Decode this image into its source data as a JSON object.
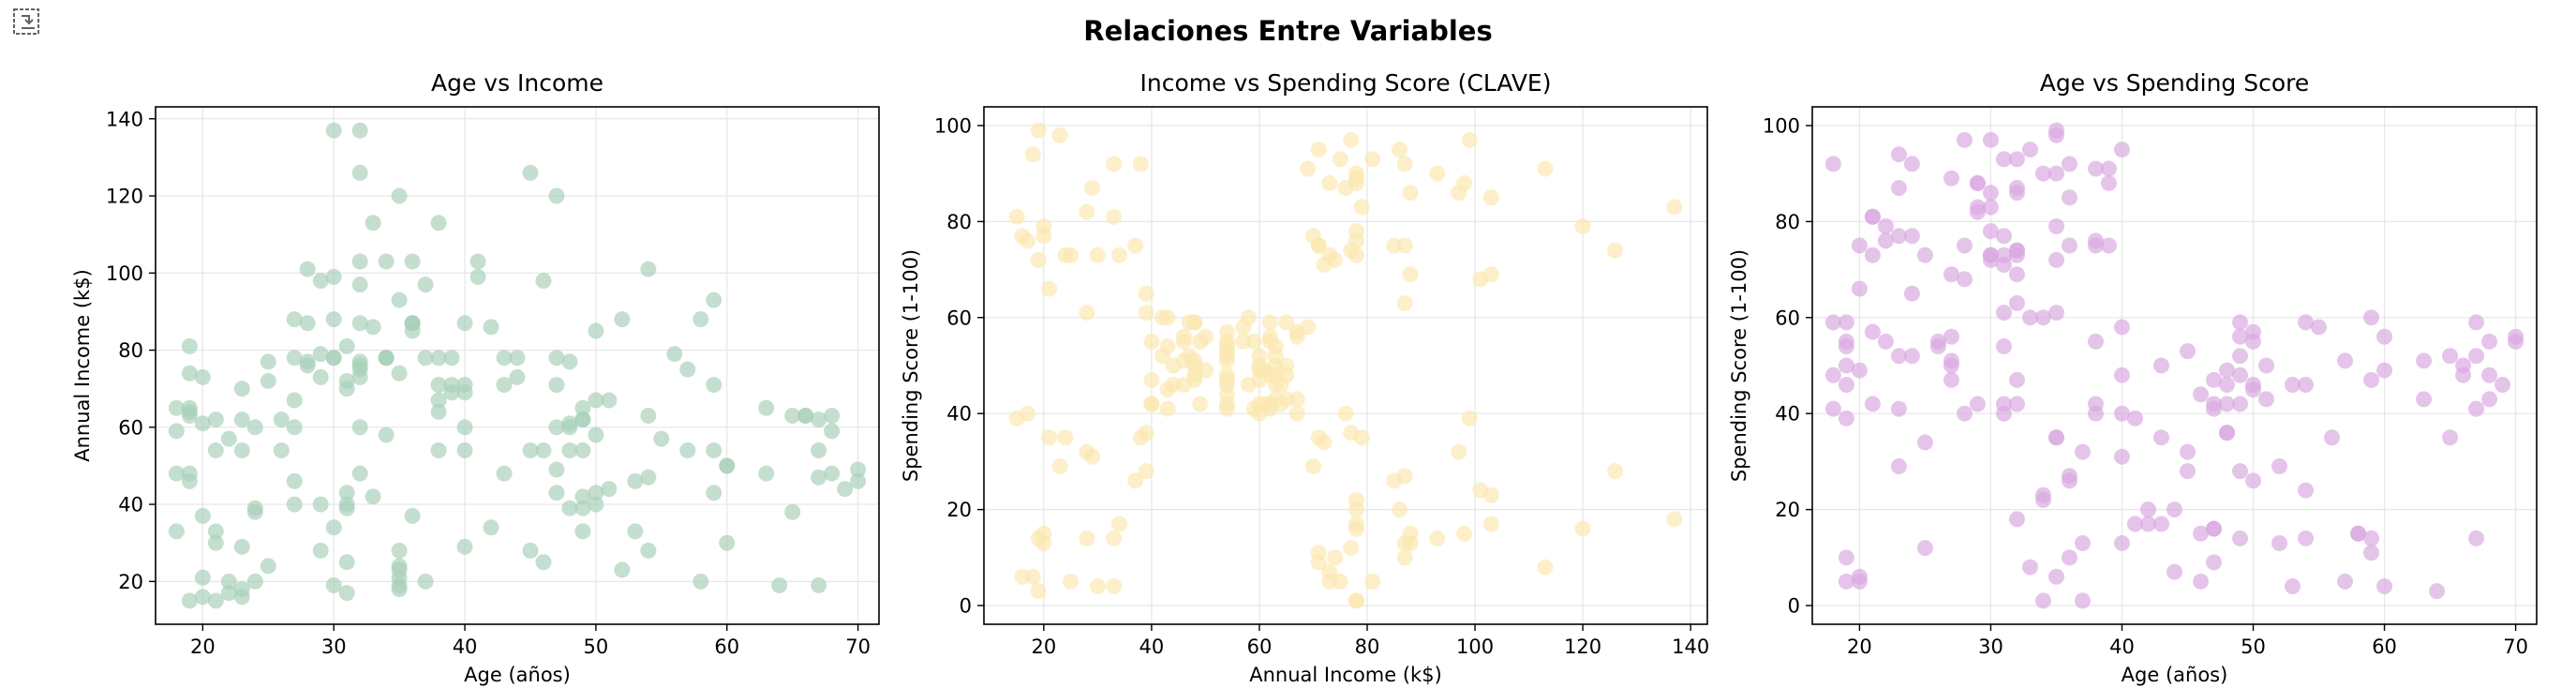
{
  "figure": {
    "suptitle": "Relaciones Entre Variables"
  },
  "toolbar": {
    "icon": "expand-output-icon"
  },
  "chart_data": [
    {
      "type": "scatter",
      "title": "Age vs Income",
      "xlabel": "Age (años)",
      "ylabel": "Annual Income (k$)",
      "xlim": [
        16.4,
        71.6
      ],
      "ylim": [
        8.9,
        143.1
      ],
      "xticks": [
        20,
        30,
        40,
        50,
        60,
        70
      ],
      "yticks": [
        20,
        40,
        60,
        80,
        100,
        120,
        140
      ],
      "grid": true,
      "color": "#a8d0b8",
      "x": [
        19,
        21,
        20,
        23,
        31,
        22,
        35,
        23,
        64,
        30,
        67,
        35,
        58,
        24,
        37,
        22,
        35,
        20,
        52,
        35,
        35,
        25,
        46,
        31,
        54,
        29,
        45,
        35,
        40,
        23,
        60,
        21,
        53,
        18,
        49,
        21,
        42,
        30,
        36,
        20,
        65,
        24,
        48,
        31,
        49,
        24,
        50,
        27,
        29,
        31,
        49,
        33,
        31,
        59,
        50,
        47,
        51,
        69,
        27,
        53,
        70,
        19,
        67,
        54,
        63,
        18,
        43,
        68,
        19,
        32,
        70,
        47,
        60,
        60,
        59,
        26,
        45,
        40,
        23,
        49,
        57,
        38,
        67,
        46,
        21,
        48,
        55,
        22,
        34,
        50,
        68,
        18,
        48,
        40,
        32,
        24,
        47,
        27,
        48,
        20,
        23,
        49,
        67,
        26,
        49,
        21,
        66,
        54,
        68,
        66,
        65,
        19,
        38,
        19,
        18,
        19,
        63,
        49,
        51,
        50,
        27,
        38,
        40,
        39,
        23,
        31,
        43,
        40,
        59,
        38,
        47,
        39,
        25,
        31,
        20,
        29,
        44,
        32,
        19,
        35,
        57,
        32,
        28,
        32,
        25,
        28,
        48,
        32,
        34,
        34,
        43,
        39,
        44,
        38,
        47,
        27,
        37,
        30,
        34,
        30,
        56,
        29,
        19,
        31,
        50,
        36,
        42,
        33,
        36,
        32,
        40,
        28,
        36,
        36,
        52,
        30,
        58,
        27,
        59,
        35,
        37,
        32,
        46,
        29,
        41,
        30,
        54,
        28,
        41,
        36,
        34,
        32,
        33,
        38,
        47,
        35,
        45,
        32,
        32,
        30
      ],
      "y": [
        15,
        15,
        16,
        16,
        17,
        17,
        18,
        18,
        19,
        19,
        19,
        19,
        20,
        20,
        20,
        20,
        21,
        21,
        23,
        23,
        24,
        24,
        25,
        25,
        28,
        28,
        28,
        28,
        29,
        29,
        30,
        30,
        33,
        33,
        33,
        33,
        34,
        34,
        37,
        37,
        38,
        38,
        39,
        39,
        39,
        39,
        40,
        40,
        40,
        40,
        42,
        42,
        43,
        43,
        43,
        43,
        44,
        44,
        46,
        46,
        46,
        46,
        47,
        47,
        48,
        48,
        48,
        48,
        48,
        48,
        49,
        49,
        50,
        50,
        54,
        54,
        54,
        54,
        54,
        54,
        54,
        54,
        54,
        54,
        54,
        54,
        57,
        57,
        58,
        58,
        59,
        59,
        60,
        60,
        60,
        60,
        60,
        60,
        61,
        61,
        62,
        62,
        62,
        62,
        62,
        62,
        63,
        63,
        63,
        63,
        63,
        63,
        64,
        64,
        65,
        65,
        65,
        65,
        67,
        67,
        67,
        67,
        69,
        69,
        70,
        70,
        71,
        71,
        71,
        71,
        71,
        71,
        72,
        72,
        73,
        73,
        73,
        73,
        74,
        74,
        75,
        75,
        76,
        76,
        77,
        77,
        77,
        77,
        78,
        78,
        78,
        78,
        78,
        78,
        78,
        78,
        78,
        78,
        78,
        78,
        79,
        79,
        81,
        81,
        85,
        85,
        86,
        86,
        87,
        87,
        87,
        87,
        87,
        87,
        88,
        88,
        88,
        88,
        93,
        93,
        97,
        97,
        98,
        98,
        99,
        99,
        101,
        101,
        103,
        103,
        103,
        103,
        113,
        113,
        120,
        120,
        126,
        126,
        137,
        137
      ]
    },
    {
      "type": "scatter",
      "title": "Income vs Spending Score (CLAVE)",
      "xlabel": "Annual Income (k$)",
      "ylabel": "Spending Score (1-100)",
      "xlim": [
        8.9,
        143.1
      ],
      "ylim": [
        -3.9,
        103.9
      ],
      "xticks": [
        20,
        40,
        60,
        80,
        100,
        120,
        140
      ],
      "yticks": [
        0,
        20,
        40,
        60,
        80,
        100
      ],
      "grid": true,
      "color": "#fbe8b0",
      "x": [
        15,
        15,
        16,
        16,
        17,
        17,
        18,
        18,
        19,
        19,
        19,
        19,
        20,
        20,
        20,
        20,
        21,
        21,
        23,
        23,
        24,
        24,
        25,
        25,
        28,
        28,
        28,
        28,
        29,
        29,
        30,
        30,
        33,
        33,
        33,
        33,
        34,
        34,
        37,
        37,
        38,
        38,
        39,
        39,
        39,
        39,
        40,
        40,
        40,
        40,
        42,
        42,
        43,
        43,
        43,
        43,
        44,
        44,
        46,
        46,
        46,
        46,
        47,
        47,
        48,
        48,
        48,
        48,
        48,
        48,
        49,
        49,
        50,
        50,
        54,
        54,
        54,
        54,
        54,
        54,
        54,
        54,
        54,
        54,
        54,
        54,
        57,
        57,
        58,
        58,
        59,
        59,
        60,
        60,
        60,
        60,
        60,
        60,
        61,
        61,
        62,
        62,
        62,
        62,
        62,
        62,
        63,
        63,
        63,
        63,
        63,
        63,
        64,
        64,
        65,
        65,
        65,
        65,
        67,
        67,
        67,
        67,
        69,
        69,
        70,
        70,
        71,
        71,
        71,
        71,
        71,
        71,
        72,
        72,
        73,
        73,
        73,
        73,
        74,
        74,
        75,
        75,
        76,
        76,
        77,
        77,
        77,
        77,
        78,
        78,
        78,
        78,
        78,
        78,
        78,
        78,
        78,
        78,
        78,
        78,
        79,
        79,
        81,
        81,
        85,
        85,
        86,
        86,
        87,
        87,
        87,
        87,
        87,
        87,
        88,
        88,
        88,
        88,
        93,
        93,
        97,
        97,
        98,
        98,
        99,
        99,
        101,
        101,
        103,
        103,
        103,
        103,
        113,
        113,
        120,
        120,
        126,
        126,
        137,
        137
      ],
      "y": [
        39,
        81,
        6,
        77,
        40,
        76,
        6,
        94,
        3,
        72,
        14,
        99,
        15,
        77,
        13,
        79,
        35,
        66,
        29,
        98,
        35,
        73,
        5,
        73,
        14,
        82,
        32,
        61,
        31,
        87,
        4,
        73,
        4,
        92,
        14,
        81,
        17,
        73,
        26,
        75,
        35,
        92,
        36,
        61,
        28,
        65,
        55,
        47,
        42,
        42,
        52,
        60,
        54,
        60,
        45,
        41,
        50,
        46,
        51,
        46,
        56,
        55,
        52,
        59,
        51,
        59,
        50,
        48,
        59,
        47,
        55,
        42,
        49,
        56,
        47,
        54,
        53,
        48,
        52,
        42,
        51,
        55,
        41,
        44,
        57,
        46,
        58,
        55,
        60,
        46,
        55,
        41,
        49,
        40,
        42,
        52,
        47,
        50,
        42,
        49,
        41,
        48,
        59,
        55,
        56,
        42,
        50,
        46,
        43,
        48,
        52,
        54,
        42,
        46,
        48,
        50,
        43,
        59,
        43,
        57,
        56,
        40,
        58,
        91,
        29,
        77,
        35,
        95,
        11,
        75,
        9,
        75,
        34,
        71,
        5,
        88,
        7,
        73,
        10,
        72,
        5,
        93,
        40,
        87,
        12,
        97,
        36,
        74,
        22,
        90,
        17,
        88,
        20,
        76,
        16,
        89,
        1,
        78,
        1,
        73,
        35,
        83,
        5,
        93,
        26,
        75,
        20,
        95,
        27,
        63,
        13,
        75,
        10,
        92,
        13,
        86,
        15,
        69,
        14,
        90,
        32,
        86,
        15,
        88,
        39,
        97,
        24,
        68,
        17,
        85,
        23,
        69,
        8,
        91,
        16,
        79,
        28,
        74,
        18,
        83
      ]
    },
    {
      "type": "scatter",
      "title": "Age vs Spending Score",
      "xlabel": "Age (años)",
      "ylabel": "Spending Score (1-100)",
      "xlim": [
        16.4,
        71.6
      ],
      "ylim": [
        -3.9,
        103.9
      ],
      "xticks": [
        20,
        30,
        40,
        50,
        60,
        70
      ],
      "yticks": [
        0,
        20,
        40,
        60,
        80,
        100
      ],
      "grid": true,
      "color": "#d8a8e0",
      "x": [
        19,
        21,
        20,
        23,
        31,
        22,
        35,
        23,
        64,
        30,
        67,
        35,
        58,
        24,
        37,
        22,
        35,
        20,
        52,
        35,
        35,
        25,
        46,
        31,
        54,
        29,
        45,
        35,
        40,
        23,
        60,
        21,
        53,
        18,
        49,
        21,
        42,
        30,
        36,
        20,
        65,
        24,
        48,
        31,
        49,
        24,
        50,
        27,
        29,
        31,
        49,
        33,
        31,
        59,
        50,
        47,
        51,
        69,
        27,
        53,
        70,
        19,
        67,
        54,
        63,
        18,
        43,
        68,
        19,
        32,
        70,
        47,
        60,
        60,
        59,
        26,
        45,
        40,
        23,
        49,
        57,
        38,
        67,
        46,
        21,
        48,
        55,
        22,
        34,
        50,
        68,
        18,
        48,
        40,
        32,
        24,
        47,
        27,
        48,
        20,
        23,
        49,
        67,
        26,
        49,
        21,
        66,
        54,
        68,
        66,
        65,
        19,
        38,
        19,
        18,
        19,
        63,
        49,
        51,
        50,
        27,
        38,
        40,
        39,
        23,
        31,
        43,
        40,
        59,
        38,
        47,
        39,
        25,
        31,
        20,
        29,
        44,
        32,
        19,
        35,
        57,
        32,
        28,
        32,
        25,
        28,
        48,
        32,
        34,
        34,
        43,
        39,
        44,
        38,
        47,
        27,
        37,
        30,
        34,
        30,
        56,
        29,
        19,
        31,
        50,
        36,
        42,
        33,
        36,
        32,
        40,
        28,
        36,
        36,
        52,
        30,
        58,
        27,
        59,
        35,
        37,
        32,
        46,
        29,
        41,
        30,
        54,
        28,
        41,
        36,
        34,
        32,
        33,
        38,
        47,
        35,
        45,
        32,
        32,
        30
      ],
      "y": [
        39,
        81,
        6,
        77,
        40,
        76,
        6,
        94,
        3,
        72,
        14,
        99,
        15,
        77,
        13,
        79,
        35,
        66,
        29,
        98,
        35,
        73,
        5,
        73,
        14,
        82,
        32,
        61,
        31,
        87,
        4,
        73,
        4,
        92,
        14,
        81,
        17,
        73,
        26,
        75,
        35,
        92,
        36,
        61,
        28,
        65,
        55,
        47,
        42,
        42,
        52,
        60,
        54,
        60,
        45,
        41,
        50,
        46,
        51,
        46,
        56,
        55,
        52,
        59,
        51,
        59,
        50,
        48,
        59,
        47,
        55,
        42,
        49,
        56,
        47,
        54,
        53,
        48,
        52,
        42,
        51,
        55,
        41,
        44,
        57,
        46,
        58,
        55,
        60,
        46,
        55,
        41,
        49,
        40,
        42,
        52,
        47,
        50,
        42,
        49,
        41,
        48,
        59,
        55,
        56,
        42,
        50,
        46,
        43,
        48,
        52,
        54,
        42,
        46,
        48,
        50,
        43,
        59,
        43,
        57,
        56,
        40,
        58,
        91,
        29,
        77,
        35,
        95,
        11,
        75,
        9,
        75,
        34,
        71,
        5,
        88,
        7,
        73,
        10,
        72,
        5,
        93,
        40,
        87,
        12,
        97,
        36,
        74,
        22,
        90,
        17,
        88,
        20,
        76,
        16,
        89,
        1,
        78,
        1,
        73,
        35,
        83,
        5,
        93,
        26,
        75,
        20,
        95,
        27,
        63,
        13,
        75,
        10,
        92,
        13,
        86,
        15,
        69,
        14,
        90,
        32,
        86,
        15,
        88,
        39,
        97,
        24,
        68,
        17,
        85,
        23,
        69,
        8,
        91,
        16,
        79,
        28,
        74,
        18,
        83
      ]
    }
  ]
}
